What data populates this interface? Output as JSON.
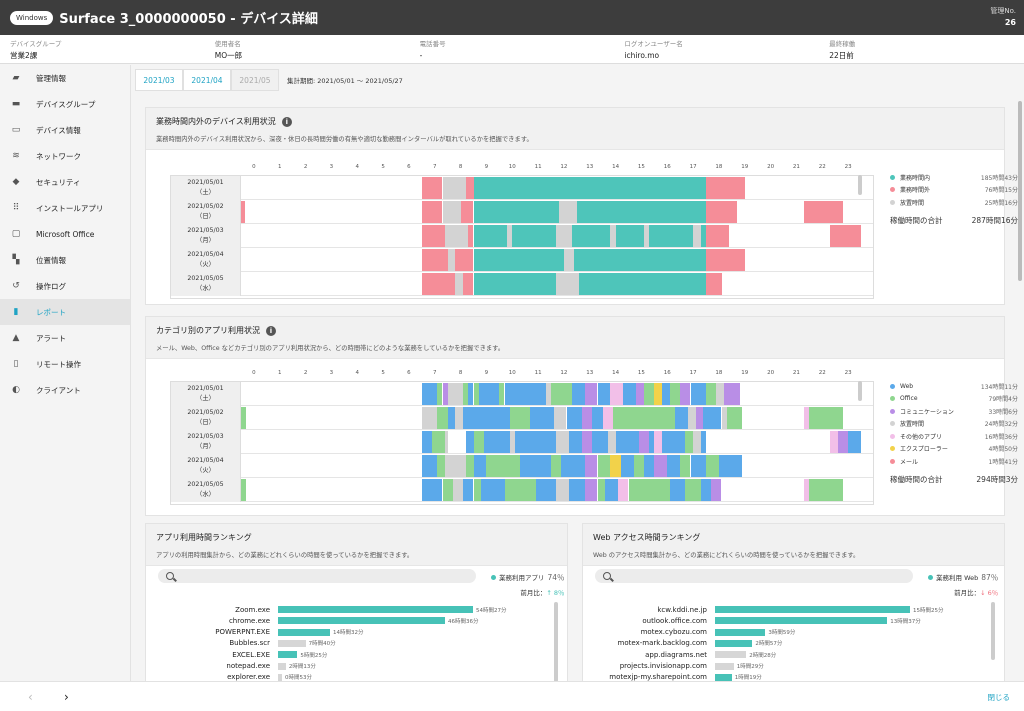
{
  "window": {
    "os_badge": "Windows",
    "title": "Surface 3_0000000050 - デバイス詳細",
    "mgmt_label": "管理No.",
    "mgmt_value": "26"
  },
  "info": [
    {
      "label": "デバイスグループ",
      "value": "営業2課"
    },
    {
      "label": "使用者名",
      "value": "MO一郎"
    },
    {
      "label": "電話番号",
      "value": "-"
    },
    {
      "label": "ログオンユーザー名",
      "value": "ichiro.mo"
    },
    {
      "label": "最終稼働",
      "value": "22日前"
    }
  ],
  "sidebar": {
    "items": [
      {
        "label": "管理情報",
        "icon": "book-icon"
      },
      {
        "label": "デバイスグループ",
        "icon": "folder-icon"
      },
      {
        "label": "デバイス情報",
        "icon": "laptop-icon"
      },
      {
        "label": "ネットワーク",
        "icon": "wifi-icon"
      },
      {
        "label": "セキュリティ",
        "icon": "shield-icon"
      },
      {
        "label": "インストールアプリ",
        "icon": "grid-icon"
      },
      {
        "label": "Microsoft Office",
        "icon": "window-icon"
      },
      {
        "label": "位置情報",
        "icon": "map-icon"
      },
      {
        "label": "操作ログ",
        "icon": "history-icon"
      },
      {
        "label": "レポート",
        "icon": "bar-chart-icon"
      },
      {
        "label": "アラート",
        "icon": "warning-icon"
      },
      {
        "label": "リモート操作",
        "icon": "remote-icon"
      },
      {
        "label": "クライアント",
        "icon": "toggle-icon"
      }
    ],
    "active": 9
  },
  "tabs": {
    "items": [
      "2021/03",
      "2021/04",
      "2021/05"
    ],
    "period": "集計期間: 2021/05/01 ～ 2021/05/27"
  },
  "hours": [
    "0",
    "1",
    "2",
    "3",
    "4",
    "5",
    "6",
    "7",
    "8",
    "9",
    "10",
    "11",
    "12",
    "13",
    "14",
    "15",
    "16",
    "17",
    "18",
    "19",
    "20",
    "21",
    "22",
    "23"
  ],
  "days": [
    {
      "date": "2021/05/01",
      "dow": "（土）"
    },
    {
      "date": "2021/05/02",
      "dow": "（日）"
    },
    {
      "date": "2021/05/03",
      "dow": "（月）"
    },
    {
      "date": "2021/05/04",
      "dow": "（火）"
    },
    {
      "date": "2021/05/05",
      "dow": "（水）"
    }
  ],
  "usage": {
    "title": "業務時間内外のデバイス利用状況",
    "desc": "業務時間内外のデバイス利用状況から、深夜・休日の長時間労働の有無や適切な勤務間インターバルが取れているかを把握できます。",
    "colors": {
      "in": "#4ec5ba",
      "out": "#f58d98",
      "idle": "#d3d3d3"
    },
    "legend": [
      {
        "name": "業務時間内",
        "value": "185時間43分",
        "color": "#4ec5ba"
      },
      {
        "name": "業務時間外",
        "value": "76時間15分",
        "color": "#f58d98"
      },
      {
        "name": "放置時間",
        "value": "25時間16分",
        "color": "#d3d3d3"
      }
    ],
    "total_label": "稼働時間の合計",
    "total_value": "287時間16分",
    "rows": [
      [
        [
          7.0,
          7.8,
          "out"
        ],
        [
          7.8,
          8.1,
          "idle"
        ],
        [
          8.1,
          8.7,
          "idle"
        ],
        [
          8.7,
          9.0,
          "out"
        ],
        [
          9.0,
          18.0,
          "in"
        ],
        [
          18.0,
          19.5,
          "out"
        ]
      ],
      [
        [
          0.0,
          0.15,
          "out"
        ],
        [
          7.0,
          7.8,
          "out"
        ],
        [
          7.8,
          8.5,
          "idle"
        ],
        [
          8.5,
          9.0,
          "out"
        ],
        [
          9.0,
          12.3,
          "in"
        ],
        [
          12.3,
          13.0,
          "idle"
        ],
        [
          13.0,
          18.0,
          "in"
        ],
        [
          18.0,
          19.2,
          "out"
        ],
        [
          21.8,
          23.3,
          "out"
        ]
      ],
      [
        [
          7.0,
          7.9,
          "out"
        ],
        [
          7.9,
          8.8,
          "idle"
        ],
        [
          8.8,
          9.0,
          "out"
        ],
        [
          9.0,
          10.3,
          "in"
        ],
        [
          10.3,
          10.5,
          "idle"
        ],
        [
          10.5,
          12.2,
          "in"
        ],
        [
          12.2,
          12.8,
          "idle"
        ],
        [
          12.8,
          14.3,
          "in"
        ],
        [
          14.3,
          14.5,
          "idle"
        ],
        [
          14.5,
          15.6,
          "in"
        ],
        [
          15.6,
          15.8,
          "idle"
        ],
        [
          15.8,
          17.5,
          "in"
        ],
        [
          17.5,
          17.8,
          "idle"
        ],
        [
          17.8,
          18.0,
          "in"
        ],
        [
          18.0,
          18.9,
          "out"
        ],
        [
          22.8,
          24.0,
          "out"
        ]
      ],
      [
        [
          7.0,
          8.0,
          "out"
        ],
        [
          8.0,
          8.3,
          "idle"
        ],
        [
          8.3,
          9.0,
          "out"
        ],
        [
          9.0,
          12.5,
          "in"
        ],
        [
          12.5,
          12.9,
          "idle"
        ],
        [
          12.9,
          18.0,
          "in"
        ],
        [
          18.0,
          19.5,
          "out"
        ]
      ],
      [
        [
          7.0,
          8.3,
          "out"
        ],
        [
          8.3,
          8.6,
          "idle"
        ],
        [
          8.6,
          9.0,
          "out"
        ],
        [
          9.0,
          12.2,
          "in"
        ],
        [
          12.2,
          13.1,
          "idle"
        ],
        [
          13.1,
          18.0,
          "in"
        ],
        [
          18.0,
          18.6,
          "out"
        ]
      ]
    ]
  },
  "category": {
    "title": "カテゴリ別のアプリ利用状況",
    "desc": "メール、Web、Office などカテゴリ別のアプリ利用状況から、どの時間帯にどのような業務をしているかを把握できます。",
    "colors": {
      "web": "#5ba9ea",
      "office": "#8fd68f",
      "comm": "#b98ee6",
      "idle": "#d3d3d3",
      "other": "#f2bfe8",
      "explorer": "#f2d24a",
      "mail": "#f58d98"
    },
    "legend": [
      {
        "name": "Web",
        "value": "134時間11分",
        "color": "#5ba9ea"
      },
      {
        "name": "Office",
        "value": "79時間4分",
        "color": "#8fd68f"
      },
      {
        "name": "コミュニケーション",
        "value": "33時間6分",
        "color": "#b98ee6"
      },
      {
        "name": "放置時間",
        "value": "24時間32分",
        "color": "#d3d3d3"
      },
      {
        "name": "その他のアプリ",
        "value": "16時間36分",
        "color": "#f2bfe8"
      },
      {
        "name": "エクスプローラー",
        "value": "4時間50分",
        "color": "#f2d24a"
      },
      {
        "name": "メール",
        "value": "1時間41分",
        "color": "#f58d98"
      }
    ],
    "total_label": "稼働時間の合計",
    "total_value": "294時間3分",
    "rows": [
      [
        [
          7.0,
          7.6,
          "web"
        ],
        [
          7.6,
          7.8,
          "office"
        ],
        [
          7.8,
          8.0,
          "comm"
        ],
        [
          8.0,
          8.6,
          "idle"
        ],
        [
          8.6,
          8.8,
          "office"
        ],
        [
          8.8,
          9.0,
          "web"
        ],
        [
          9.0,
          9.2,
          "office"
        ],
        [
          9.2,
          10.0,
          "web"
        ],
        [
          10.0,
          10.2,
          "office"
        ],
        [
          10.2,
          11.8,
          "web"
        ],
        [
          11.8,
          12.0,
          "idle"
        ],
        [
          12.0,
          12.8,
          "office"
        ],
        [
          12.8,
          13.3,
          "web"
        ],
        [
          13.3,
          13.8,
          "comm"
        ],
        [
          13.8,
          14.3,
          "web"
        ],
        [
          14.3,
          14.8,
          "other"
        ],
        [
          14.8,
          15.3,
          "web"
        ],
        [
          15.3,
          15.6,
          "comm"
        ],
        [
          15.6,
          16.0,
          "office"
        ],
        [
          16.0,
          16.3,
          "explorer"
        ],
        [
          16.3,
          16.6,
          "web"
        ],
        [
          16.6,
          17.0,
          "office"
        ],
        [
          17.0,
          17.4,
          "comm"
        ],
        [
          17.4,
          18.0,
          "web"
        ],
        [
          18.0,
          18.4,
          "office"
        ],
        [
          18.4,
          18.7,
          "idle"
        ],
        [
          18.7,
          19.3,
          "comm"
        ]
      ],
      [
        [
          0.0,
          0.2,
          "office"
        ],
        [
          7.0,
          7.6,
          "idle"
        ],
        [
          7.6,
          8.0,
          "office"
        ],
        [
          8.0,
          8.3,
          "web"
        ],
        [
          8.3,
          8.6,
          "idle"
        ],
        [
          8.6,
          9.2,
          "web"
        ],
        [
          9.2,
          10.4,
          "web"
        ],
        [
          10.4,
          11.2,
          "office"
        ],
        [
          11.2,
          12.1,
          "web"
        ],
        [
          12.1,
          12.6,
          "idle"
        ],
        [
          12.6,
          13.2,
          "web"
        ],
        [
          13.2,
          13.6,
          "comm"
        ],
        [
          13.6,
          14.0,
          "web"
        ],
        [
          14.0,
          14.4,
          "other"
        ],
        [
          14.4,
          15.3,
          "office"
        ],
        [
          15.3,
          16.8,
          "office"
        ],
        [
          16.8,
          17.3,
          "web"
        ],
        [
          17.3,
          17.6,
          "idle"
        ],
        [
          17.6,
          17.9,
          "comm"
        ],
        [
          17.9,
          18.6,
          "web"
        ],
        [
          18.6,
          18.8,
          "idle"
        ],
        [
          18.8,
          19.4,
          "office"
        ],
        [
          21.8,
          22.0,
          "other"
        ],
        [
          22.0,
          23.3,
          "office"
        ]
      ],
      [
        [
          7.0,
          7.4,
          "web"
        ],
        [
          7.4,
          7.9,
          "office"
        ],
        [
          7.9,
          8.0,
          "idle"
        ],
        [
          8.7,
          9.0,
          "web"
        ],
        [
          9.0,
          9.4,
          "office"
        ],
        [
          9.4,
          10.4,
          "web"
        ],
        [
          10.4,
          10.6,
          "idle"
        ],
        [
          10.6,
          12.2,
          "web"
        ],
        [
          12.2,
          12.7,
          "idle"
        ],
        [
          12.7,
          13.2,
          "web"
        ],
        [
          13.2,
          13.6,
          "comm"
        ],
        [
          13.6,
          14.2,
          "web"
        ],
        [
          14.2,
          14.5,
          "idle"
        ],
        [
          14.5,
          15.4,
          "web"
        ],
        [
          15.4,
          15.8,
          "comm"
        ],
        [
          15.8,
          16.0,
          "web"
        ],
        [
          16.0,
          16.3,
          "other"
        ],
        [
          16.3,
          17.2,
          "web"
        ],
        [
          17.2,
          17.5,
          "office"
        ],
        [
          17.5,
          17.8,
          "idle"
        ],
        [
          17.8,
          18.0,
          "web"
        ],
        [
          22.8,
          23.1,
          "other"
        ],
        [
          23.1,
          23.5,
          "comm"
        ],
        [
          23.5,
          24.0,
          "web"
        ]
      ],
      [
        [
          7.0,
          7.6,
          "web"
        ],
        [
          7.6,
          7.9,
          "office"
        ],
        [
          7.9,
          8.0,
          "idle"
        ],
        [
          8.0,
          8.7,
          "idle"
        ],
        [
          8.7,
          9.0,
          "office"
        ],
        [
          9.0,
          9.5,
          "web"
        ],
        [
          9.5,
          10.8,
          "office"
        ],
        [
          10.8,
          12.0,
          "web"
        ],
        [
          12.0,
          12.4,
          "office"
        ],
        [
          12.4,
          13.3,
          "web"
        ],
        [
          13.3,
          13.8,
          "comm"
        ],
        [
          13.8,
          14.3,
          "office"
        ],
        [
          14.3,
          14.7,
          "explorer"
        ],
        [
          14.7,
          15.2,
          "web"
        ],
        [
          15.2,
          15.6,
          "office"
        ],
        [
          15.6,
          16.0,
          "web"
        ],
        [
          16.0,
          16.5,
          "comm"
        ],
        [
          16.5,
          17.0,
          "web"
        ],
        [
          17.0,
          17.4,
          "office"
        ],
        [
          17.4,
          18.0,
          "web"
        ],
        [
          18.0,
          18.5,
          "office"
        ],
        [
          18.5,
          19.4,
          "web"
        ]
      ],
      [
        [
          0.0,
          0.2,
          "office"
        ],
        [
          7.0,
          7.8,
          "web"
        ],
        [
          7.8,
          8.2,
          "office"
        ],
        [
          8.2,
          8.6,
          "idle"
        ],
        [
          8.6,
          9.0,
          "web"
        ],
        [
          9.0,
          9.3,
          "office"
        ],
        [
          9.3,
          10.2,
          "web"
        ],
        [
          10.2,
          11.4,
          "office"
        ],
        [
          11.4,
          12.2,
          "web"
        ],
        [
          12.2,
          12.7,
          "idle"
        ],
        [
          12.7,
          13.3,
          "web"
        ],
        [
          13.3,
          13.8,
          "comm"
        ],
        [
          13.8,
          14.1,
          "office"
        ],
        [
          14.1,
          14.6,
          "web"
        ],
        [
          14.6,
          15.0,
          "other"
        ],
        [
          15.0,
          16.6,
          "office"
        ],
        [
          16.6,
          17.2,
          "web"
        ],
        [
          17.2,
          17.8,
          "office"
        ],
        [
          17.8,
          18.2,
          "web"
        ],
        [
          18.2,
          18.6,
          "comm"
        ],
        [
          21.8,
          22.0,
          "other"
        ],
        [
          22.0,
          23.3,
          "office"
        ]
      ]
    ]
  },
  "app_rank": {
    "title": "アプリ利用時間ランキング",
    "desc": "アプリの利用時間集計から、どの業務にどれくらいの時間を使っているかを把握できます。",
    "stat_label": "業務利用アプリ",
    "stat_pct": "74％",
    "diff_label": "前月比：",
    "diff_value": "↑ 8％",
    "diff_color": "#47c2b7",
    "max": 54.4,
    "items": [
      {
        "name": "Zoom.exe",
        "value": 54.4,
        "time": "54時間27分",
        "kind": "work"
      },
      {
        "name": "chrome.exe",
        "value": 46.6,
        "time": "46時間36分",
        "kind": "work"
      },
      {
        "name": "POWERPNT.EXE",
        "value": 14.5,
        "time": "14時間32分",
        "kind": "work"
      },
      {
        "name": "Bubbles.scr",
        "value": 7.7,
        "time": "7時間40分",
        "kind": "other"
      },
      {
        "name": "EXCEL.EXE",
        "value": 5.4,
        "time": "5時間25分",
        "kind": "work"
      },
      {
        "name": "notepad.exe",
        "value": 2.2,
        "time": "2時間13分",
        "kind": "other"
      },
      {
        "name": "explorer.exe",
        "value": 0.9,
        "time": "0時間53分",
        "kind": "other"
      }
    ]
  },
  "web_rank": {
    "title": "Web アクセス時間ランキング",
    "desc": "Web のアクセス時間集計から、どの業務にどれくらいの時間を使っているかを把握できます。",
    "stat_label": "業務利用 Web",
    "stat_pct": "87％",
    "diff_label": "前月比：",
    "diff_value": "↓ 6％",
    "diff_color": "#f0727f",
    "max": 15.4,
    "items": [
      {
        "name": "kcw.kddi.ne.jp",
        "value": 15.4,
        "time": "15時間25分",
        "kind": "work"
      },
      {
        "name": "outlook.office.com",
        "value": 13.6,
        "time": "13時間37分",
        "kind": "work"
      },
      {
        "name": "motex.cybozu.com",
        "value": 3.98,
        "time": "3時間59分",
        "kind": "work"
      },
      {
        "name": "motex-mark.backlog.com",
        "value": 2.95,
        "time": "2時間57分",
        "kind": "work"
      },
      {
        "name": "app.diagrams.net",
        "value": 2.47,
        "time": "2時間28分",
        "kind": "other"
      },
      {
        "name": "projects.invisionapp.com",
        "value": 1.48,
        "time": "1時間29分",
        "kind": "other"
      },
      {
        "name": "motexjp-my.sharepoint.com",
        "value": 1.32,
        "time": "1時間19分",
        "kind": "work"
      }
    ]
  },
  "rank_colors": {
    "work": "#47c2b7",
    "other": "#d6d6d6"
  },
  "footer": {
    "prev": "‹",
    "next": "›",
    "close": "閉じる"
  }
}
